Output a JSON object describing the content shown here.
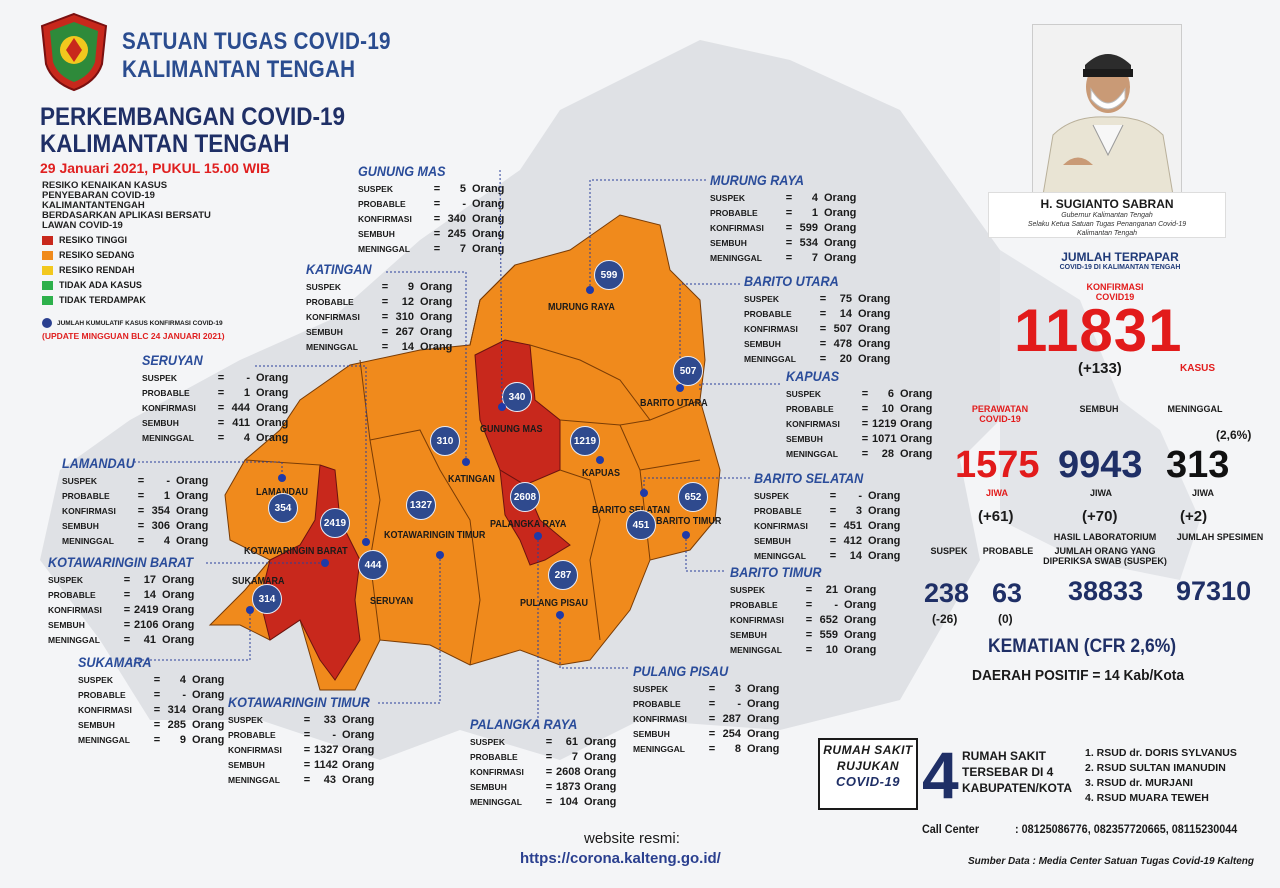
{
  "header": {
    "org_line1": "SATUAN TUGAS COVID-19",
    "org_line2": "KALIMANTAN TENGAH",
    "title_line1": "PERKEMBANGAN COVID-19",
    "title_line2": "KALIMANTAN TENGAH",
    "date": "29 Januari 2021, PUKUL 15.00 WIB"
  },
  "legend": {
    "title": "RESIKO KENAIKAN KASUS PENYEBARAN COVID-19 KALIMANTANTENGAH BERDASARKAN APLIKASI BERSATU LAWAN COVID-19",
    "items": [
      {
        "label": "RESIKO TINGGI",
        "color": "#c8281c"
      },
      {
        "label": "RESIKO SEDANG",
        "color": "#f08a1c"
      },
      {
        "label": "RESIKO RENDAH",
        "color": "#f2c81e"
      },
      {
        "label": "TIDAK ADA KASUS",
        "color": "#2db04b"
      },
      {
        "label": "TIDAK TERDAMPAK",
        "color": "#2db04b"
      }
    ],
    "dot_note": "JUMLAH KUMULATIF KASUS KONFIRMASI COVID-19",
    "update_note": "(UPDATE MINGGUAN BLC 24 JANUARI 2021)"
  },
  "row_labels": {
    "suspek": "SUSPEK",
    "probable": "PROBABLE",
    "konfirmasi": "KONFIRMASI",
    "sembuh": "SEMBUH",
    "meninggal": "MENINGGAL",
    "eq": "=",
    "unit": "Orang"
  },
  "regions": {
    "gunung_mas": {
      "name": "GUNUNG MAS",
      "map_label": "GUNUNG MAS",
      "suspek": "5",
      "probable": "-",
      "konfirmasi": "340",
      "sembuh": "245",
      "meninggal": "7",
      "bubble": "340"
    },
    "murung_raya": {
      "name": "MURUNG RAYA",
      "map_label": "MURUNG RAYA",
      "suspek": "4",
      "probable": "1",
      "konfirmasi": "599",
      "sembuh": "534",
      "meninggal": "7",
      "bubble": "599"
    },
    "katingan": {
      "name": "KATINGAN",
      "map_label": "KATINGAN",
      "suspek": "9",
      "probable": "12",
      "konfirmasi": "310",
      "sembuh": "267",
      "meninggal": "14",
      "bubble": "310"
    },
    "barito_utara": {
      "name": "BARITO UTARA",
      "map_label": "BARITO UTARA",
      "suspek": "75",
      "probable": "14",
      "konfirmasi": "507",
      "sembuh": "478",
      "meninggal": "20",
      "bubble": "507"
    },
    "seruyan": {
      "name": "SERUYAN",
      "map_label": "SERUYAN",
      "suspek": "-",
      "probable": "1",
      "konfirmasi": "444",
      "sembuh": "411",
      "meninggal": "4",
      "bubble": "444"
    },
    "kapuas": {
      "name": "KAPUAS",
      "map_label": "KAPUAS",
      "suspek": "6",
      "probable": "10",
      "konfirmasi": "1219",
      "sembuh": "1071",
      "meninggal": "28",
      "bubble": "1219"
    },
    "lamandau": {
      "name": "LAMANDAU",
      "map_label": "LAMANDAU",
      "suspek": "-",
      "probable": "1",
      "konfirmasi": "354",
      "sembuh": "306",
      "meninggal": "4",
      "bubble": "354"
    },
    "barito_selatan": {
      "name": "BARITO SELATAN",
      "map_label": "BARITO SELATAN",
      "suspek": "-",
      "probable": "3",
      "konfirmasi": "451",
      "sembuh": "412",
      "meninggal": "14",
      "bubble": "451"
    },
    "kotawaringin_barat": {
      "name": "KOTAWARINGIN BARAT",
      "map_label": "KOTAWARINGIN BARAT",
      "suspek": "17",
      "probable": "14",
      "konfirmasi": "2419",
      "sembuh": "2106",
      "meninggal": "41",
      "bubble": "2419"
    },
    "barito_timur": {
      "name": "BARITO TIMUR",
      "map_label": "BARITO TIMUR",
      "suspek": "21",
      "probable": "-",
      "konfirmasi": "652",
      "sembuh": "559",
      "meninggal": "10",
      "bubble": "652"
    },
    "sukamara": {
      "name": "SUKAMARA",
      "map_label": "SUKAMARA",
      "suspek": "4",
      "probable": "-",
      "konfirmasi": "314",
      "sembuh": "285",
      "meninggal": "9",
      "bubble": "314"
    },
    "pulang_pisau": {
      "name": "PULANG PISAU",
      "map_label": "PULANG PISAU",
      "suspek": "3",
      "probable": "-",
      "konfirmasi": "287",
      "sembuh": "254",
      "meninggal": "8",
      "bubble": "287"
    },
    "kotawaringin_timur": {
      "name": "KOTAWARINGIN TIMUR",
      "map_label": "KOTAWARINGIN TIMUR",
      "suspek": "33",
      "probable": "-",
      "konfirmasi": "1327",
      "sembuh": "1142",
      "meninggal": "43",
      "bubble": "1327"
    },
    "palangka_raya": {
      "name": "PALANGKA RAYA",
      "map_label": "PALANGKA RAYA",
      "suspek": "61",
      "probable": "7",
      "konfirmasi": "2608",
      "sembuh": "1873",
      "meninggal": "104",
      "bubble": "2608"
    }
  },
  "governor": {
    "name": "H. SUGIANTO SABRAN",
    "title1": "Gubernur Kalimantan Tengah",
    "title2": "Selaku Ketua Satuan Tugas Penanganan Covid-19",
    "title3": "Kalimantan Tengah"
  },
  "summary": {
    "title": "JUMLAH TERPAPAR",
    "subtitle": "COVID-19 DI KALIMANTAN TENGAH",
    "konf_label1": "KONFIRMASI",
    "konf_label2": "COVID19",
    "total": "11831",
    "total_delta": "(+133)",
    "kasus": "KASUS",
    "perawatan_label1": "PERAWATAN",
    "perawatan_label2": "COVID-19",
    "sembuh_label": "SEMBUH",
    "meninggal_label": "MENINGGAL",
    "meninggal_pct": "(2,6%)",
    "perawatan": "1575",
    "sembuh": "9943",
    "meninggal": "313",
    "jiwa": "JIWA",
    "perawatan_delta": "(+61)",
    "sembuh_delta": "(+70)",
    "meninggal_delta": "(+2)",
    "suspek_label": "SUSPEK",
    "probable_label": "PROBABLE",
    "lab_label1": "HASIL LABORATORIUM",
    "lab_label2": "JUMLAH ORANG YANG",
    "lab_label3": "DIPERIKSA SWAB (SUSPEK)",
    "spesimen_label": "JUMLAH SPESIMEN",
    "suspek": "238",
    "probable": "63",
    "orang_diperiksa": "38833",
    "spesimen": "97310",
    "suspek_delta": "(-26)",
    "probable_delta": "(0)",
    "cfr": "KEMATIAN (CFR 2,6%)",
    "daerah_positif": "DAERAH POSITIF = 14 Kab/Kota"
  },
  "hospitals": {
    "box_l1": "RUMAH SAKIT",
    "box_l2": "RUJUKAN",
    "box_l3": "COVID-19",
    "count": "4",
    "desc_l1": "RUMAH SAKIT",
    "desc_l2": "TERSEBAR DI 4",
    "desc_l3": "KABUPATEN/KOTA",
    "list": [
      "1. RSUD dr. DORIS SYLVANUS",
      "2. RSUD SULTAN IMANUDIN",
      "3. RSUD dr. MURJANI",
      "4. RSUD MUARA TEWEH"
    ]
  },
  "footer": {
    "call_label": "Call Center",
    "call_numbers": ": 08125086776, 082357720665, 08115230044",
    "source": "Sumber Data : Media Center Satuan Tugas Covid-19 Kalteng",
    "website_label": "website resmi:",
    "website_url": "https://corona.kalteng.go.id/"
  },
  "colors": {
    "high": "#c8281c",
    "medium": "#f08a1c",
    "bubble": "#2f4a8e",
    "title_navy": "#1f2f66",
    "accent_red": "#e21b1b"
  }
}
